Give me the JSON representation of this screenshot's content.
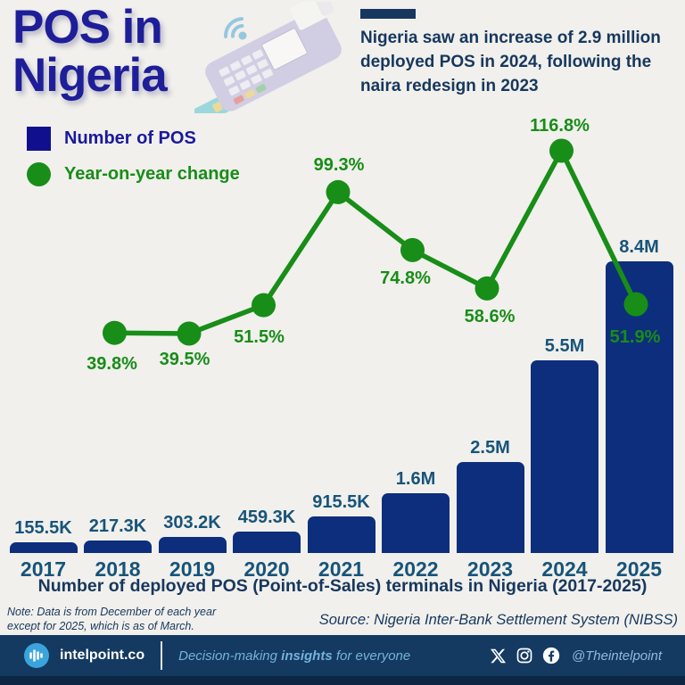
{
  "colors": {
    "background": "#F1F0EC",
    "title": "#1E1E99",
    "navy_text": "#17375E",
    "bar": "#0D2E7C",
    "legend_square": "#10108F",
    "green": "#188D18",
    "axis_label": "#17547A",
    "footer_bg": "#143A61",
    "footer_accent": "#3BA4DC"
  },
  "header": {
    "title_line1": "POS in",
    "title_line2": "Nigeria",
    "subtitle": "Nigeria saw an increase of 2.9 million deployed POS in 2024, following the naira redesign in 2023",
    "illustration_icons": [
      "pos-terminal-icon",
      "contactless-wifi-icon",
      "bank-card-icon"
    ]
  },
  "legend": {
    "items": [
      {
        "label": "Number of POS",
        "swatch": "square",
        "color": "#10108F"
      },
      {
        "label": "Year-on-year change",
        "swatch": "circle",
        "color": "#188D18"
      }
    ]
  },
  "chart_data": {
    "type": "bar+line combo",
    "categories": [
      "2017",
      "2018",
      "2019",
      "2020",
      "2021",
      "2022",
      "2023",
      "2024",
      "2025"
    ],
    "bar_series": {
      "name": "Number of POS",
      "values": [
        155500,
        217300,
        303200,
        459300,
        915500,
        1600000,
        2500000,
        5500000,
        8400000
      ],
      "labels": [
        "155.5K",
        "217.3K",
        "303.2K",
        "459.3K",
        "915.5K",
        "1.6M",
        "2.5M",
        "5.5M",
        "8.4M"
      ],
      "color": "#0D2E7C"
    },
    "line_series": {
      "name": "Year-on-year change",
      "categories": [
        "2018",
        "2019",
        "2020",
        "2021",
        "2022",
        "2023",
        "2024",
        "2025"
      ],
      "values_pct": [
        39.8,
        39.5,
        51.5,
        99.3,
        74.8,
        58.6,
        116.8,
        51.9
      ],
      "labels": [
        "39.8%",
        "39.5%",
        "51.5%",
        "99.3%",
        "74.8%",
        "58.6%",
        "116.8%",
        "51.9%"
      ],
      "color": "#188D18"
    },
    "caption": "Number of deployed POS (Point-of-Sales) terminals in Nigeria (2017-2025)",
    "legend_position": "top-left",
    "grid": false,
    "ylim_bar": [
      0,
      8400000
    ],
    "ylim_line_pct": [
      39.5,
      116.8
    ]
  },
  "footnotes": {
    "note": "Note: Data is from December of each year except for 2025, which is as of March.",
    "source": "Source: Nigeria Inter-Bank Settlement System (NIBSS)"
  },
  "footer": {
    "brand": "intelpoint.co",
    "logo_icon": "equalizer-bars-icon",
    "tagline_prefix": "Decision-making ",
    "tagline_emphasis": "insights",
    "tagline_suffix": " for everyone",
    "social_icons": [
      "x-twitter-icon",
      "instagram-icon",
      "facebook-icon"
    ],
    "handle": "@Theintelpoint"
  }
}
